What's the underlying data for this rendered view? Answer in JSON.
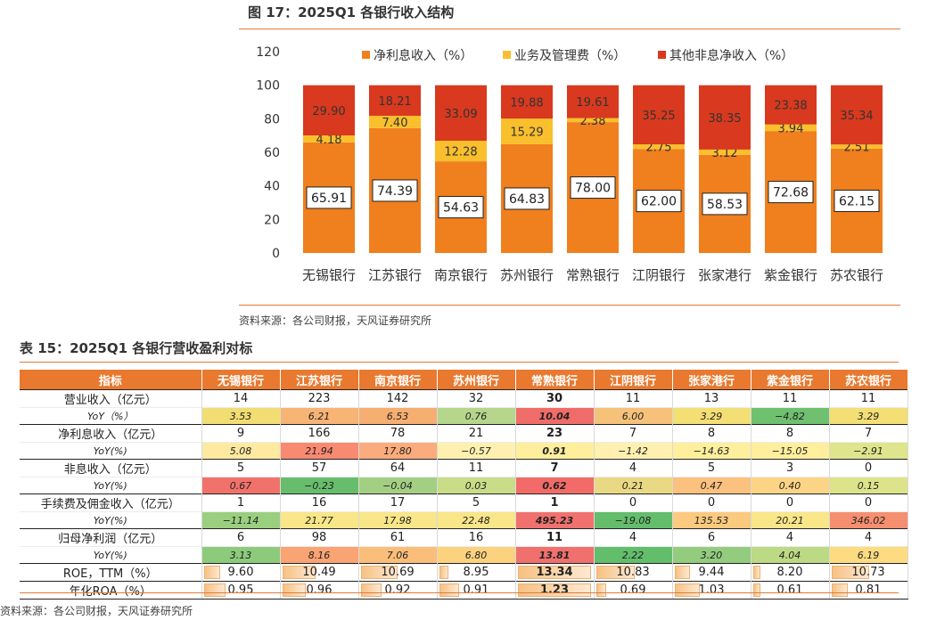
{
  "figure": {
    "title": "图 17：2025Q1 各银行收入结构",
    "source": "资料来源：各公司财报，天风证券研究所"
  },
  "chart_data": {
    "type": "bar",
    "stacked": true,
    "categories": [
      "无锡银行",
      "江苏银行",
      "南京银行",
      "苏州银行",
      "常熟银行",
      "江阴银行",
      "张家港行",
      "紫金银行",
      "苏农银行"
    ],
    "series": [
      {
        "name": "净利息收入（%）",
        "color": "#f07f1e",
        "values": [
          65.91,
          74.39,
          54.63,
          64.83,
          78.0,
          62.0,
          58.53,
          72.68,
          62.15
        ],
        "labels": [
          "65.91",
          "74.39",
          "54.63",
          "64.83",
          "78.00",
          "62.00",
          "58.53",
          "72.68",
          "62.15"
        ]
      },
      {
        "name": "业务及管理费（%）",
        "color": "#f9bf2c",
        "values": [
          4.18,
          7.4,
          12.28,
          15.29,
          2.38,
          2.75,
          3.12,
          3.94,
          2.51
        ],
        "labels": [
          "4.18",
          "7.40",
          "12.28",
          "15.29",
          "2.38",
          "2.75",
          "3.12",
          "3.94",
          "2.51"
        ]
      },
      {
        "name": "其他非息净收入（%）",
        "color": "#d9391e",
        "values": [
          29.9,
          18.21,
          33.09,
          19.88,
          19.61,
          35.25,
          38.35,
          23.38,
          35.34
        ],
        "labels": [
          "29.90",
          "18.21",
          "33.09",
          "19.88",
          "19.61",
          "35.25",
          "38.35",
          "23.38",
          "35.34"
        ]
      }
    ],
    "ylim": [
      0,
      120
    ],
    "yticks": [
      "0",
      "20",
      "40",
      "60",
      "80",
      "100",
      "120"
    ],
    "legend": "top",
    "grid": false
  },
  "table": {
    "title": "表 15：2025Q1 各银行营收盈利对标",
    "source": "资料来源：各公司财报，天风证券研究所",
    "header": [
      "指标",
      "无锡银行",
      "江苏银行",
      "南京银行",
      "苏州银行",
      "常熟银行",
      "江阴银行",
      "张家港行",
      "紫金银行",
      "苏农银行"
    ],
    "rows": [
      {
        "label": "营业收入（亿元）",
        "values": [
          "14",
          "223",
          "142",
          "32",
          "30",
          "11",
          "13",
          "11",
          "11"
        ]
      },
      {
        "label": "YoY（%）",
        "yoy": true,
        "values": [
          "3.53",
          "6.21",
          "6.53",
          "0.76",
          "10.04",
          "6.00",
          "3.29",
          "−4.82",
          "3.29"
        ],
        "colors": [
          "#f2dd72",
          "#f7b475",
          "#f6ae71",
          "#b5d68b",
          "#ef6c69",
          "#f6c27a",
          "#f4df74",
          "#6fc06f",
          "#f4df74"
        ]
      },
      {
        "label": "净利息收入（亿元）",
        "values": [
          "9",
          "166",
          "78",
          "21",
          "23",
          "7",
          "8",
          "8",
          "7"
        ]
      },
      {
        "label": "YoY(%)",
        "yoy": true,
        "values": [
          "5.08",
          "21.94",
          "17.80",
          "−0.57",
          "0.91",
          "−1.42",
          "−14.63",
          "−15.05",
          "−2.91"
        ],
        "colors": [
          "#fde9a0",
          "#f98a72",
          "#fbab7c",
          "#fff0b0",
          "#ffef9c",
          "#fff0b0",
          "#ffef9c",
          "#ffef9c",
          "#dee58d"
        ]
      },
      {
        "label": "非息收入（亿元）",
        "values": [
          "5",
          "57",
          "64",
          "11",
          "7",
          "4",
          "5",
          "3",
          "0"
        ]
      },
      {
        "label": "YoY(%)",
        "yoy": true,
        "values": [
          "0.67",
          "−0.23",
          "−0.04",
          "0.03",
          "0.62",
          "0.21",
          "0.47",
          "0.40",
          "0.15"
        ],
        "colors": [
          "#f1726b",
          "#67bd6c",
          "#a3cf83",
          "#c9dd88",
          "#f26b68",
          "#ead984",
          "#fbc17e",
          "#fcd486",
          "#dde38a"
        ]
      },
      {
        "label": "手续费及佣金收入（亿元）",
        "values": [
          "1",
          "16",
          "17",
          "5",
          "1",
          "0",
          "0",
          "0",
          "0"
        ]
      },
      {
        "label": "YoY(%)",
        "yoy": true,
        "values": [
          "−11.14",
          "21.77",
          "17.98",
          "22.48",
          "495.23",
          "−19.08",
          "135.53",
          "20.21",
          "346.02"
        ],
        "colors": [
          "#9bcf80",
          "#f9e688",
          "#f9e688",
          "#f9e688",
          "#f0716e",
          "#63bd6b",
          "#fbca7e",
          "#f9e688",
          "#f68f6f"
        ]
      },
      {
        "label": "归母净利润（亿元）",
        "values": [
          "6",
          "98",
          "61",
          "16",
          "11",
          "4",
          "6",
          "4",
          "4"
        ]
      },
      {
        "label": "YoY(%)",
        "yoy": true,
        "values": [
          "3.13",
          "8.16",
          "7.06",
          "6.80",
          "13.81",
          "2.22",
          "3.20",
          "4.04",
          "6.19"
        ],
        "colors": [
          "#8ccb7c",
          "#f9a472",
          "#fbbe7a",
          "#fdd27f",
          "#f0706d",
          "#63be6c",
          "#93cc7e",
          "#bcd983",
          "#fcdb81"
        ]
      },
      {
        "label": "ROE，TTM（%）",
        "bar": true,
        "values": [
          "9.60",
          "10.49",
          "10.69",
          "8.95",
          "13.34",
          "10.83",
          "9.44",
          "8.20",
          "10.73"
        ],
        "fill": [
          0.14,
          0.39,
          0.44,
          0.03,
          0.98,
          0.47,
          0.12,
          0.0,
          0.45
        ]
      },
      {
        "label": "年化ROA（%）",
        "bar": true,
        "values": [
          "0.95",
          "0.96",
          "0.92",
          "0.91",
          "1.23",
          "0.69",
          "1.03",
          "0.61",
          "0.81"
        ],
        "fill": [
          0.22,
          0.24,
          0.2,
          0.19,
          0.98,
          0.05,
          0.27,
          0.0,
          0.14
        ]
      }
    ],
    "bold_col": 4
  }
}
